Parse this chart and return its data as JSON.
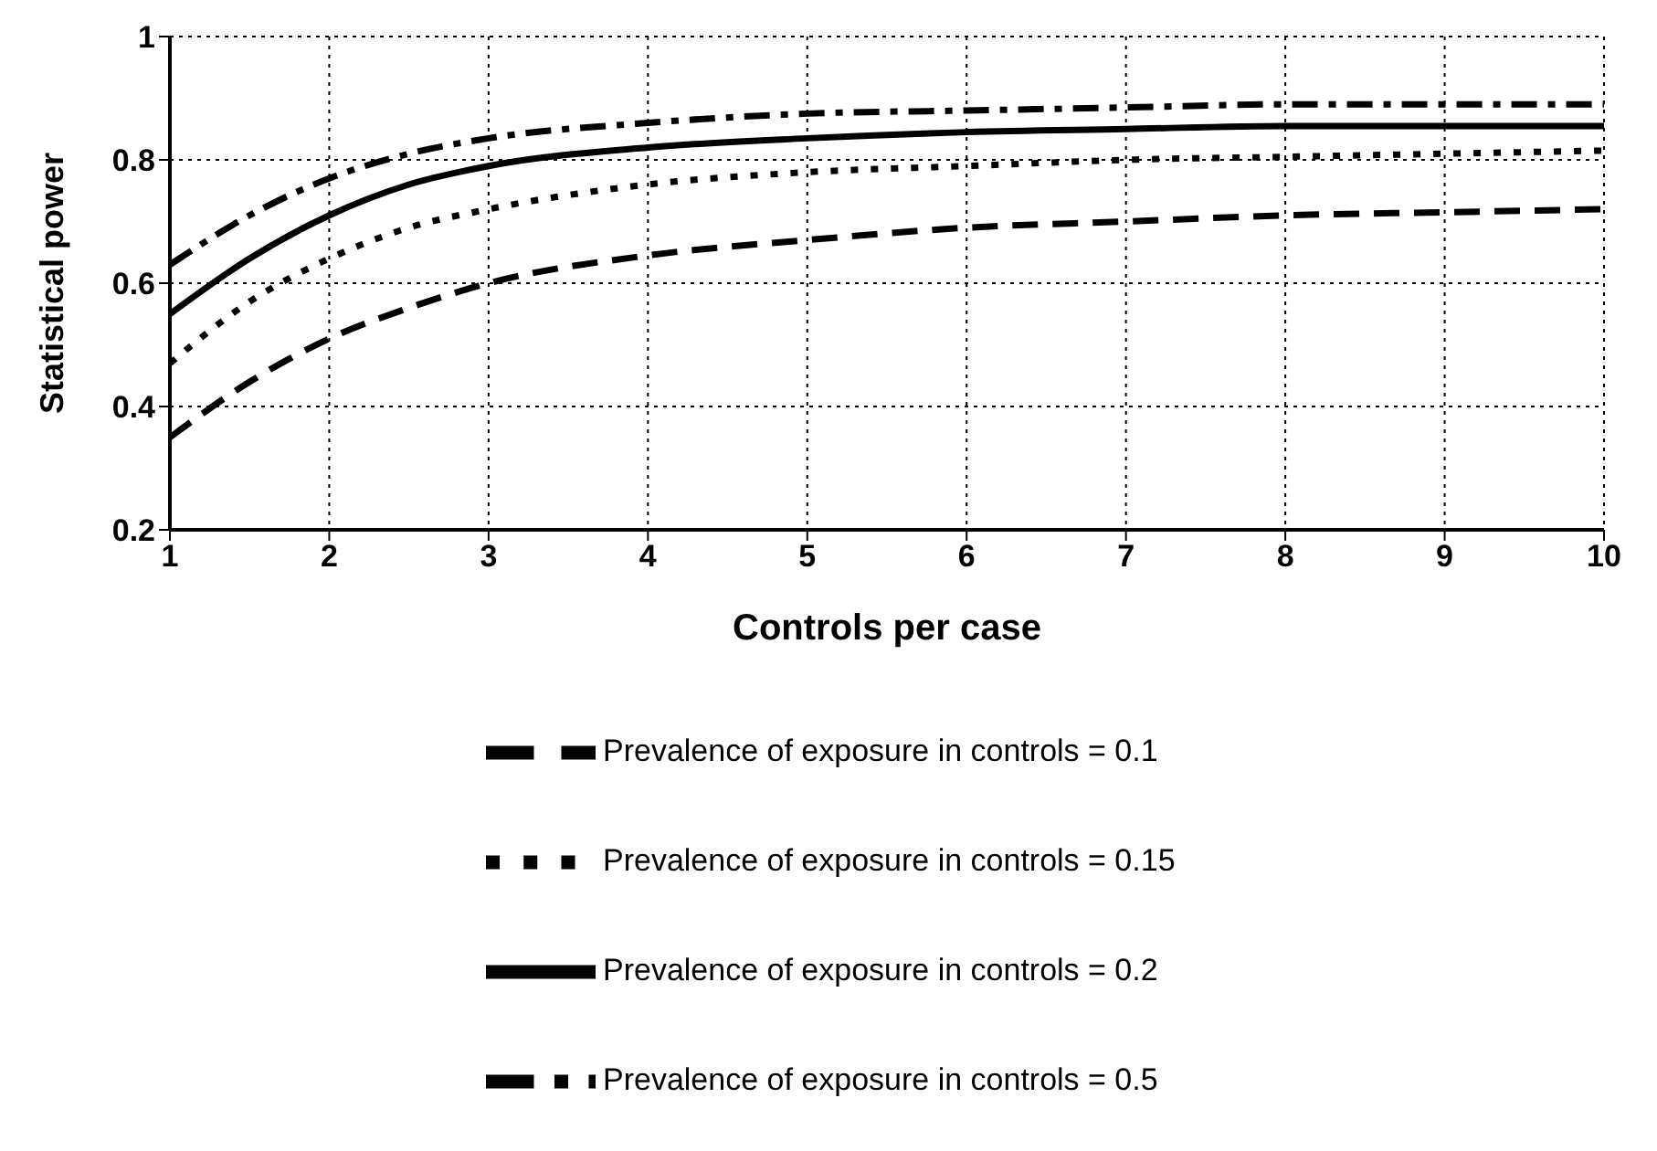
{
  "chart_data": {
    "type": "line",
    "xlabel": "Controls per case",
    "ylabel": "Statistical power",
    "x": [
      1,
      1.5,
      2,
      2.5,
      3,
      4,
      5,
      6,
      7,
      8,
      9,
      10
    ],
    "series": [
      {
        "name": "Prevalence of exposure in controls = 0.5",
        "color": "#000000",
        "line_style": "dashdot",
        "values": [
          0.63,
          0.71,
          0.77,
          0.81,
          0.835,
          0.86,
          0.875,
          0.88,
          0.885,
          0.89,
          0.89,
          0.89
        ]
      },
      {
        "name": "Prevalence of exposure in controls = 0.2",
        "color": "#000000",
        "line_style": "solid",
        "values": [
          0.55,
          0.64,
          0.71,
          0.76,
          0.79,
          0.82,
          0.835,
          0.845,
          0.85,
          0.855,
          0.855,
          0.855
        ]
      },
      {
        "name": "Prevalence of exposure in controls = 0.15",
        "color": "#000000",
        "line_style": "dotted",
        "values": [
          0.47,
          0.57,
          0.64,
          0.69,
          0.72,
          0.76,
          0.78,
          0.79,
          0.8,
          0.805,
          0.81,
          0.815
        ]
      },
      {
        "name": "Prevalence of exposure in controls = 0.1",
        "color": "#000000",
        "line_style": "dashed",
        "values": [
          0.35,
          0.44,
          0.51,
          0.56,
          0.6,
          0.645,
          0.67,
          0.69,
          0.7,
          0.71,
          0.715,
          0.72
        ]
      }
    ],
    "xlim": [
      1,
      10
    ],
    "xticks": [
      1,
      2,
      3,
      4,
      5,
      6,
      7,
      8,
      9,
      10
    ],
    "ylim": [
      0.2,
      1
    ],
    "yticks": [
      0.2,
      0.4,
      0.6,
      0.8,
      1
    ],
    "grid": true,
    "legend": "bottom",
    "marker": "none"
  }
}
